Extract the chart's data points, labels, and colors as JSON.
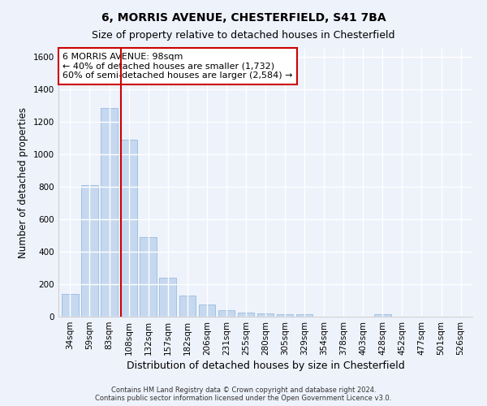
{
  "title1": "6, MORRIS AVENUE, CHESTERFIELD, S41 7BA",
  "title2": "Size of property relative to detached houses in Chesterfield",
  "xlabel": "Distribution of detached houses by size in Chesterfield",
  "ylabel": "Number of detached properties",
  "categories": [
    "34sqm",
    "59sqm",
    "83sqm",
    "108sqm",
    "132sqm",
    "157sqm",
    "182sqm",
    "206sqm",
    "231sqm",
    "255sqm",
    "280sqm",
    "305sqm",
    "329sqm",
    "354sqm",
    "378sqm",
    "403sqm",
    "428sqm",
    "452sqm",
    "477sqm",
    "501sqm",
    "526sqm"
  ],
  "values": [
    140,
    810,
    1285,
    1090,
    490,
    238,
    130,
    75,
    42,
    25,
    20,
    15,
    13,
    2,
    2,
    1,
    14,
    1,
    1,
    1,
    1
  ],
  "bar_color": "#c5d8f0",
  "bar_edge_color": "#8ab4d8",
  "vline_x_pos": 2.62,
  "vline_color": "#cc0000",
  "annotation_text": "6 MORRIS AVENUE: 98sqm\n← 40% of detached houses are smaller (1,732)\n60% of semi-detached houses are larger (2,584) →",
  "annotation_box_facecolor": "#ffffff",
  "annotation_box_edgecolor": "#cc0000",
  "ylim": [
    0,
    1650
  ],
  "yticks": [
    0,
    200,
    400,
    600,
    800,
    1000,
    1200,
    1400,
    1600
  ],
  "footer_text": "Contains HM Land Registry data © Crown copyright and database right 2024.\nContains public sector information licensed under the Open Government Licence v3.0.",
  "bg_color": "#eef2fb",
  "grid_color": "#ffffff",
  "title_fontsize": 10,
  "subtitle_fontsize": 9,
  "tick_fontsize": 7.5,
  "ylabel_fontsize": 8.5,
  "xlabel_fontsize": 9,
  "annotation_fontsize": 8,
  "footer_fontsize": 6
}
